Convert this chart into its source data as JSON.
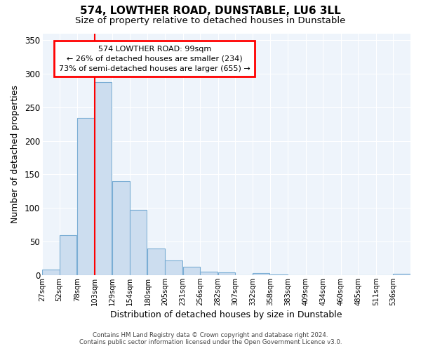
{
  "title": "574, LOWTHER ROAD, DUNSTABLE, LU6 3LL",
  "subtitle": "Size of property relative to detached houses in Dunstable",
  "xlabel": "Distribution of detached houses by size in Dunstable",
  "ylabel": "Number of detached properties",
  "bar_color": "#ccddef",
  "bar_edge_color": "#7aadd4",
  "red_line_x": 103,
  "annotation_line1": "574 LOWTHER ROAD: 99sqm",
  "annotation_line2": "← 26% of detached houses are smaller (234)",
  "annotation_line3": "73% of semi-detached houses are larger (655) →",
  "bins": [
    27,
    52,
    78,
    103,
    129,
    154,
    180,
    205,
    231,
    256,
    282,
    307,
    332,
    358,
    383,
    409,
    434,
    460,
    485,
    511,
    536
  ],
  "counts": [
    8,
    59,
    234,
    287,
    140,
    97,
    40,
    22,
    12,
    5,
    4,
    0,
    3,
    1,
    0,
    0,
    0,
    0,
    0,
    0,
    2
  ],
  "tick_labels": [
    "27sqm",
    "52sqm",
    "78sqm",
    "103sqm",
    "129sqm",
    "154sqm",
    "180sqm",
    "205sqm",
    "231sqm",
    "256sqm",
    "282sqm",
    "307sqm",
    "332sqm",
    "358sqm",
    "383sqm",
    "409sqm",
    "434sqm",
    "460sqm",
    "485sqm",
    "511sqm",
    "536sqm"
  ],
  "ylim": [
    0,
    360
  ],
  "yticks": [
    0,
    50,
    100,
    150,
    200,
    250,
    300,
    350
  ],
  "footer_line1": "Contains HM Land Registry data © Crown copyright and database right 2024.",
  "footer_line2": "Contains public sector information licensed under the Open Government Licence v3.0.",
  "background_color": "#ffffff",
  "plot_bg_color": "#eef4fb",
  "grid_color": "#ffffff"
}
